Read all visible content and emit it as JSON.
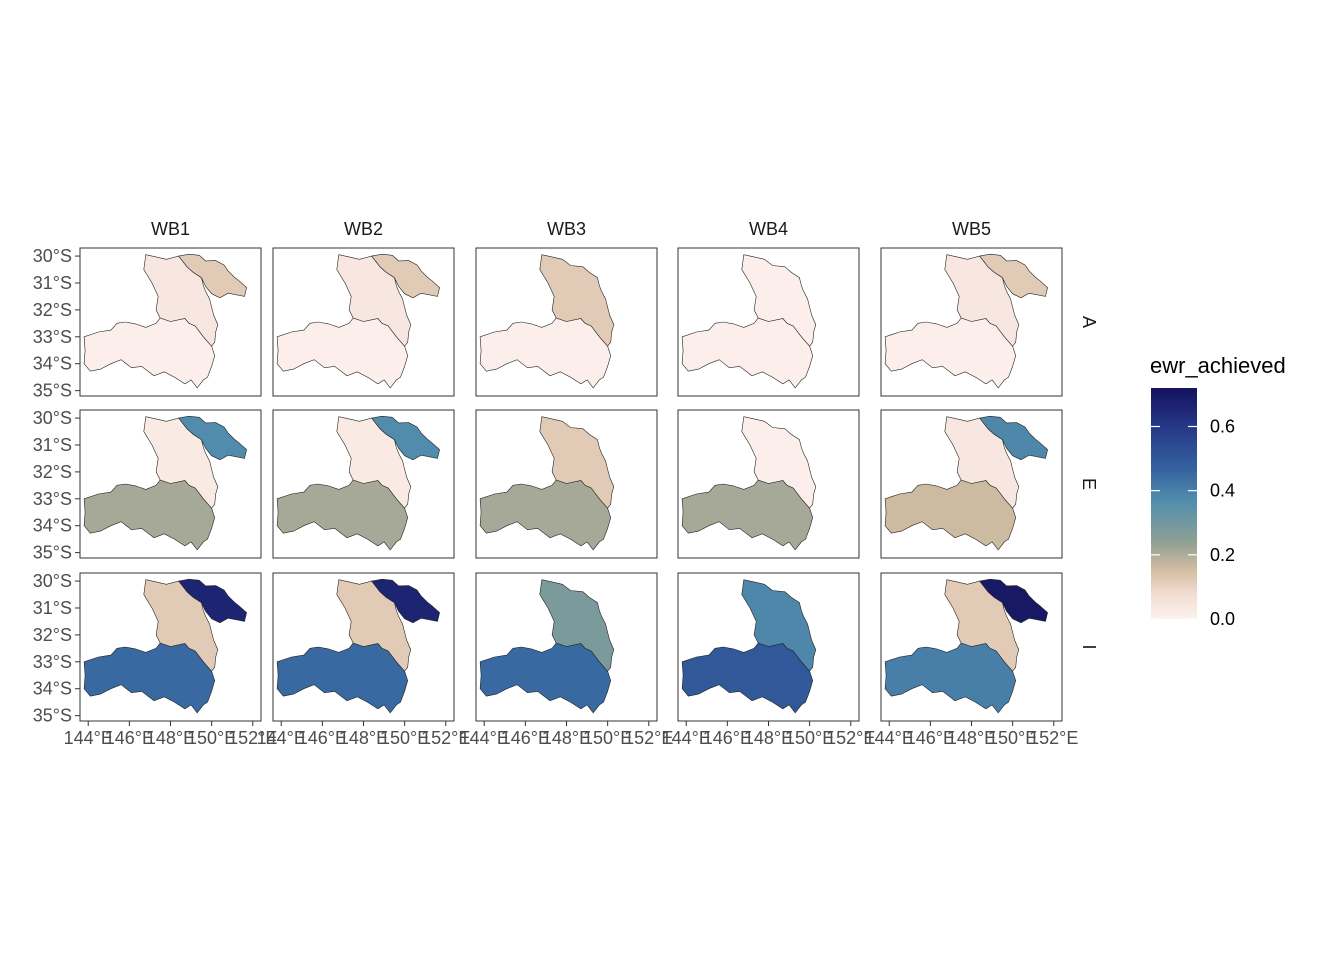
{
  "chart_data": {
    "type": "heatmap",
    "description_kind": "faceted choropleth map",
    "columns": [
      "WB1",
      "WB2",
      "WB3",
      "WB4",
      "WB5"
    ],
    "rows": [
      "A",
      "E",
      "I"
    ],
    "regions": [
      "northeast",
      "central",
      "south"
    ],
    "x_ticks": [
      "144°E",
      "146°E",
      "148°E",
      "150°E",
      "152°E"
    ],
    "y_ticks": [
      "30°S",
      "31°S",
      "32°S",
      "33°S",
      "34°S",
      "35°S"
    ],
    "x_range": [
      143.6,
      152.4
    ],
    "y_range": [
      -35.2,
      -29.7
    ],
    "fill_values": {
      "A": {
        "WB1": {
          "northeast": 0.12,
          "central": 0.04,
          "south": 0.01
        },
        "WB2": {
          "northeast": 0.12,
          "central": 0.04,
          "south": 0.01
        },
        "WB3": {
          "northeast": null,
          "central": 0.12,
          "south": 0.01
        },
        "WB4": {
          "northeast": null,
          "central": 0.01,
          "south": 0.01
        },
        "WB5": {
          "northeast": 0.12,
          "central": 0.04,
          "south": 0.01
        }
      },
      "E": {
        "WB1": {
          "northeast": 0.37,
          "central": 0.03,
          "south": 0.21
        },
        "WB2": {
          "northeast": 0.37,
          "central": 0.03,
          "south": 0.21
        },
        "WB3": {
          "northeast": null,
          "central": 0.12,
          "south": 0.21
        },
        "WB4": {
          "northeast": null,
          "central": 0.01,
          "south": 0.21
        },
        "WB5": {
          "northeast": 0.38,
          "central": 0.04,
          "south": 0.16
        }
      },
      "I": {
        "WB1": {
          "northeast": 0.66,
          "central": 0.12,
          "south": 0.45
        },
        "WB2": {
          "northeast": 0.66,
          "central": 0.12,
          "south": 0.45
        },
        "WB3": {
          "northeast": null,
          "central": 0.28,
          "south": 0.45
        },
        "WB4": {
          "northeast": null,
          "central": 0.38,
          "south": 0.5
        },
        "WB5": {
          "northeast": 0.7,
          "central": 0.12,
          "south": 0.4
        }
      }
    },
    "legend": {
      "title": "ewr_achieved",
      "position": "right",
      "ticks": [
        0.0,
        0.2,
        0.4,
        0.6
      ],
      "tick_labels": [
        "0.0",
        "0.2",
        "0.4",
        "0.6"
      ],
      "range": [
        0,
        0.72
      ],
      "gradient_stops": [
        {
          "v": 0.0,
          "c": "#fdf2ef"
        },
        {
          "v": 0.08,
          "c": "#f1dcd1"
        },
        {
          "v": 0.15,
          "c": "#d5bea3"
        },
        {
          "v": 0.24,
          "c": "#8f9f93"
        },
        {
          "v": 0.36,
          "c": "#5490ad"
        },
        {
          "v": 0.46,
          "c": "#3665a0"
        },
        {
          "v": 0.6,
          "c": "#263787"
        },
        {
          "v": 0.72,
          "c": "#14135e"
        }
      ]
    },
    "grid": false
  }
}
